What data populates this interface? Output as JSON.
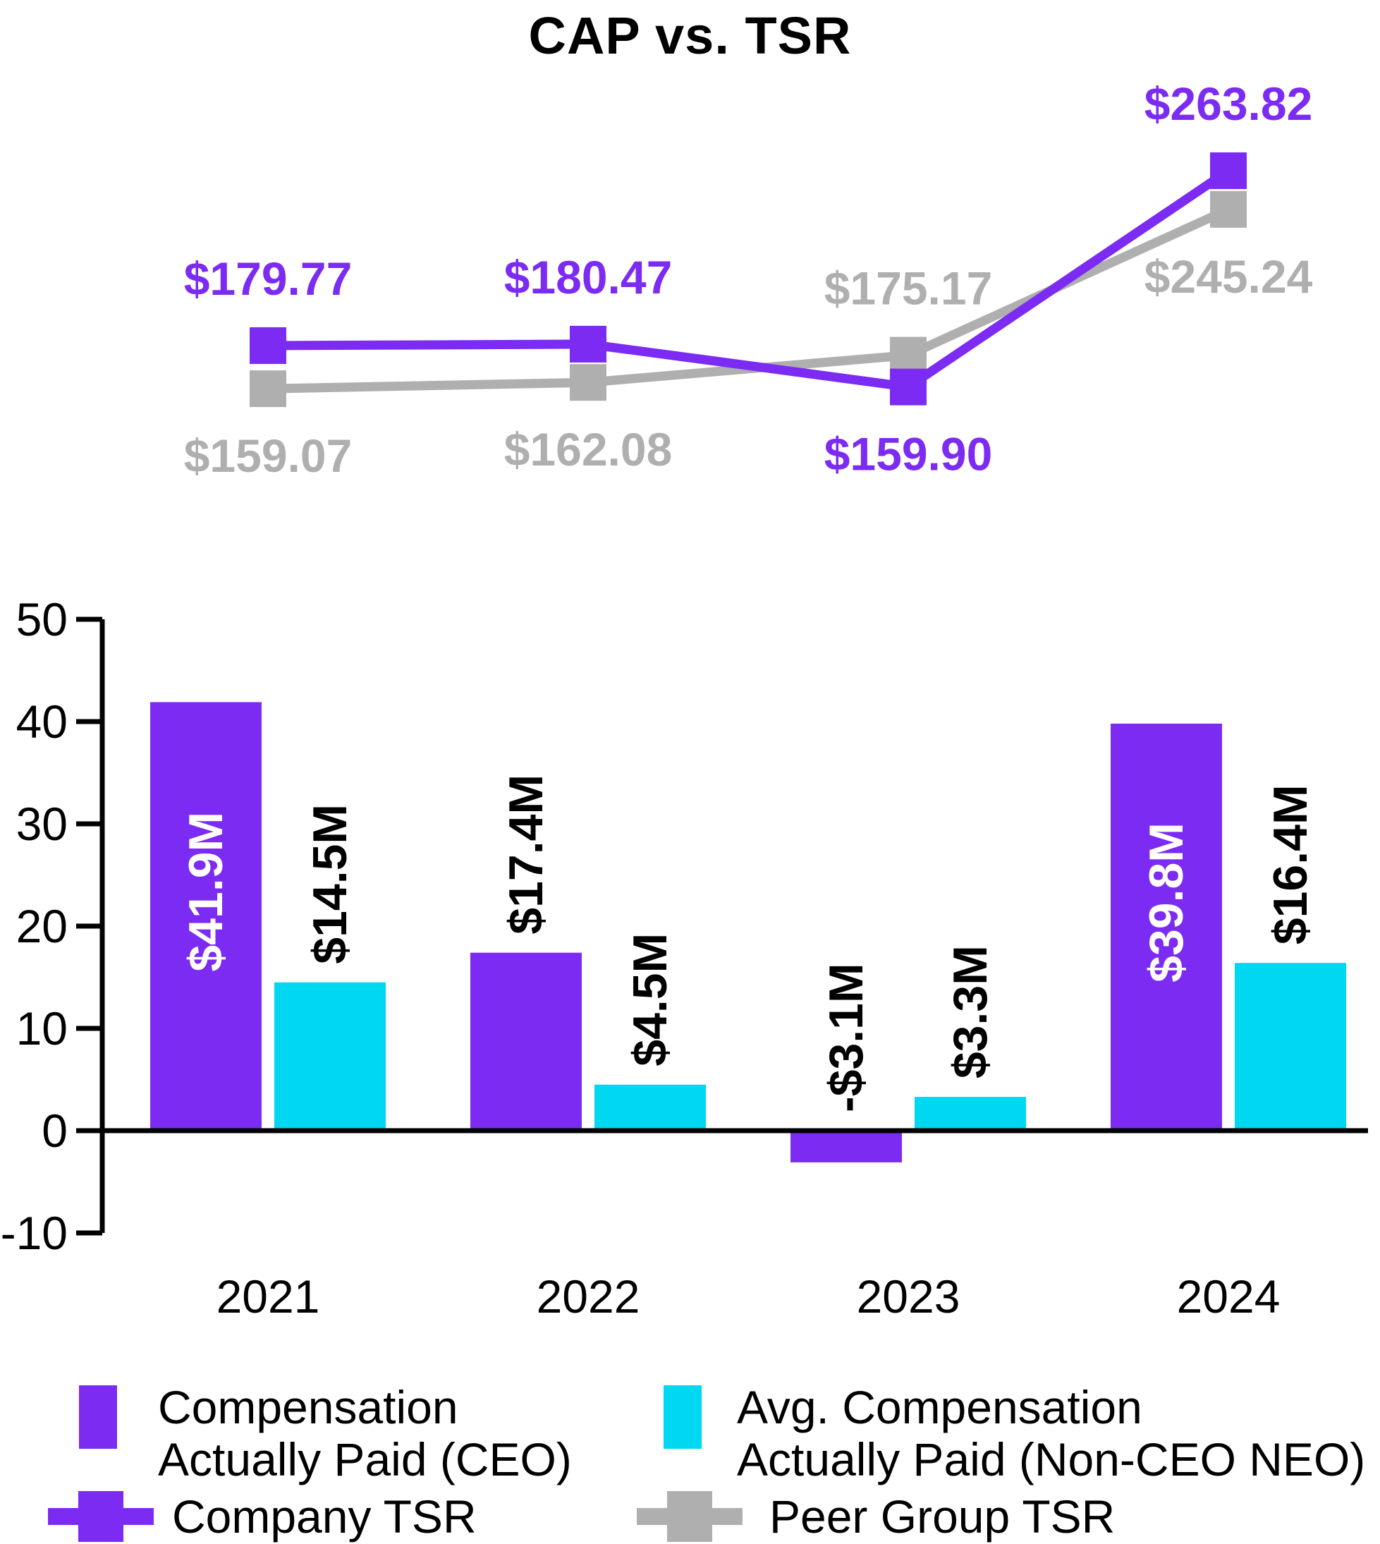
{
  "title": "CAP vs. TSR",
  "colors": {
    "purple": "#7C2BF2",
    "cyan": "#00D7F0",
    "gray": "#AFAFAF",
    "black": "#000000",
    "white": "#FFFFFF",
    "background": "#FFFFFF"
  },
  "chart_data": [
    {
      "type": "line",
      "title": "CAP vs. TSR",
      "x": [
        "2021",
        "2022",
        "2023",
        "2024"
      ],
      "series": [
        {
          "name": "Peer Group TSR",
          "color_key": "gray",
          "values": [
            159.07,
            162.08,
            175.17,
            245.24
          ],
          "labels": [
            "$159.07",
            "$162.08",
            "$175.17",
            "$245.24"
          ],
          "label_side": [
            "below",
            "below",
            "above",
            "below"
          ]
        },
        {
          "name": "Company TSR",
          "color_key": "purple",
          "values": [
            179.77,
            180.47,
            159.9,
            263.82
          ],
          "labels": [
            "$179.77",
            "$180.47",
            "$159.90",
            "$263.82"
          ],
          "label_side": [
            "above",
            "above",
            "below",
            "above"
          ]
        }
      ],
      "marker": "square",
      "grid": false,
      "axes_visible": false,
      "legend_position": "bottom"
    },
    {
      "type": "bar",
      "categories": [
        "2021",
        "2022",
        "2023",
        "2024"
      ],
      "series": [
        {
          "name": "Compensation Actually Paid (CEO)",
          "color_key": "purple",
          "values": [
            41.9,
            17.4,
            -3.1,
            39.8
          ],
          "labels": [
            "$41.9M",
            "$17.4M",
            "-$3.1M",
            "$39.8M"
          ],
          "label_placement": [
            "inside",
            "outside",
            "outside",
            "inside"
          ]
        },
        {
          "name": "Avg. Compensation Actually Paid (Non-CEO NEO)",
          "color_key": "cyan",
          "values": [
            14.5,
            4.5,
            3.3,
            16.4
          ],
          "labels": [
            "$14.5M",
            "$4.5M",
            "$3.3M",
            "$16.4M"
          ],
          "label_placement": [
            "outside",
            "outside",
            "outside",
            "outside"
          ]
        }
      ],
      "ylabel": "",
      "xlabel": "",
      "ylim": [
        -10,
        50
      ],
      "yticks": [
        50,
        40,
        30,
        20,
        10,
        0,
        -10
      ],
      "grid": false,
      "legend_position": "bottom"
    }
  ],
  "legend": {
    "ceo": {
      "line1": "Compensation",
      "line2": "Actually Paid (CEO)"
    },
    "neo": {
      "line1": "Avg. Compensation",
      "line2": "Actually Paid (Non-CEO NEO)"
    },
    "company_tsr": {
      "label": "Company TSR"
    },
    "peer_tsr": {
      "label": "Peer Group TSR"
    }
  }
}
